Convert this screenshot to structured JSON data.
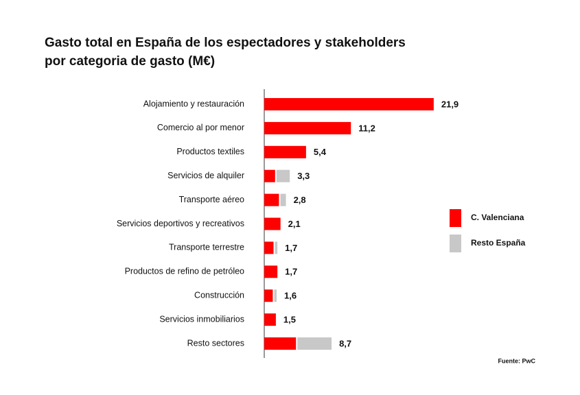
{
  "chart_data": {
    "type": "stacked-barh",
    "title": [
      "Gasto total en España de los espectadores y stakeholders",
      "por categoria de gasto (M€)"
    ],
    "categories": [
      "Alojamiento y restauración",
      "Comercio al por menor",
      "Productos textiles",
      "Servicios de alquiler",
      "Transporte aéreo",
      "Servicios deportivos y recreativos",
      "Transporte terrestre",
      "Productos de refino de petróleo",
      "Construcción",
      "Servicios inmobiliarios",
      "Resto sectores"
    ],
    "series": [
      {
        "name": "C. Valenciana",
        "color": "#ff0000",
        "values": [
          21.9,
          11.2,
          5.4,
          1.4,
          1.9,
          2.1,
          1.2,
          1.7,
          1.1,
          1.5,
          4.1
        ]
      },
      {
        "name": "Resto España",
        "color": "#c8c8c8",
        "values": [
          0,
          0,
          0,
          1.9,
          0.9,
          0,
          0.5,
          0,
          0.5,
          0,
          4.6
        ]
      }
    ],
    "totals": [
      {
        "value": 21.9,
        "label": "21,9"
      },
      {
        "value": 11.2,
        "label": "11,2"
      },
      {
        "value": 5.4,
        "label": "5,4"
      },
      {
        "value": 3.3,
        "label": "3,3"
      },
      {
        "value": 2.8,
        "label": "2,8"
      },
      {
        "value": 2.1,
        "label": "2,1"
      },
      {
        "value": 1.7,
        "label": "1,7"
      },
      {
        "value": 1.7,
        "label": "1,7"
      },
      {
        "value": 1.6,
        "label": "1,6"
      },
      {
        "value": 1.5,
        "label": "1,5"
      },
      {
        "value": 8.7,
        "label": "8,7"
      }
    ],
    "xlim": [
      0,
      22
    ],
    "source": "Fuente: PwC"
  }
}
